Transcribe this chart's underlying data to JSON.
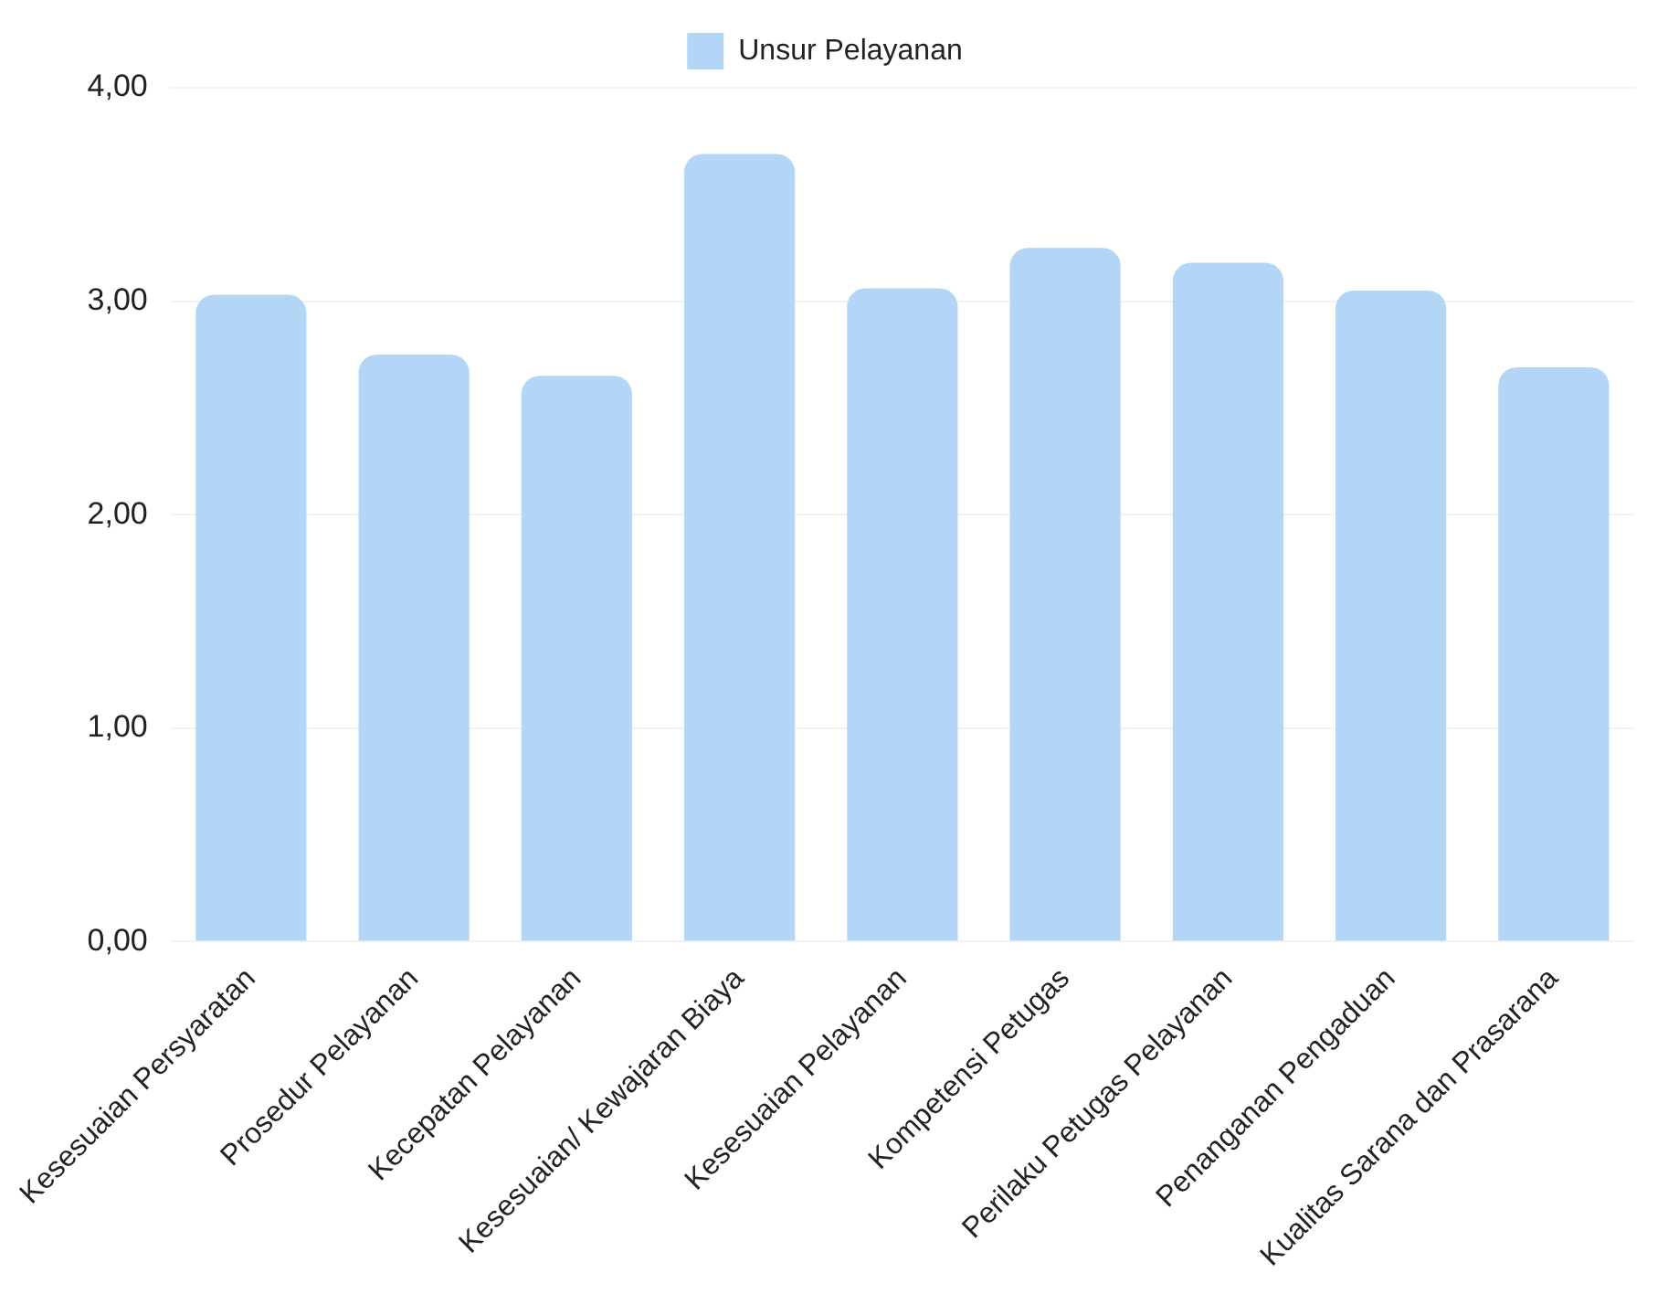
{
  "chart_data": {
    "type": "bar",
    "categories": [
      "Kesesuaian Persyaratan",
      "Prosedur Pelayanan",
      "Kecepatan Pelayanan",
      "Kesesuaian/ Kewajaran Biaya",
      "Kesesuaian Pelayanan",
      "Kompetensi Petugas",
      "Perilaku Petugas Pelayanan",
      "Penanganan Pengaduan",
      "Kualitas Sarana dan Prasarana"
    ],
    "series": [
      {
        "name": "Unsur Pelayanan",
        "color": "#b3d6f7",
        "values": [
          3.03,
          2.75,
          2.65,
          3.69,
          3.06,
          3.25,
          3.18,
          3.05,
          2.69
        ]
      }
    ],
    "ylim": [
      0,
      4
    ],
    "yticks": [
      {
        "value": 0,
        "label": "0,00"
      },
      {
        "value": 1,
        "label": "1,00"
      },
      {
        "value": 2,
        "label": "2,00"
      },
      {
        "value": 3,
        "label": "3,00"
      },
      {
        "value": 4,
        "label": "4,00"
      }
    ],
    "grid": "y",
    "legend": "top"
  }
}
